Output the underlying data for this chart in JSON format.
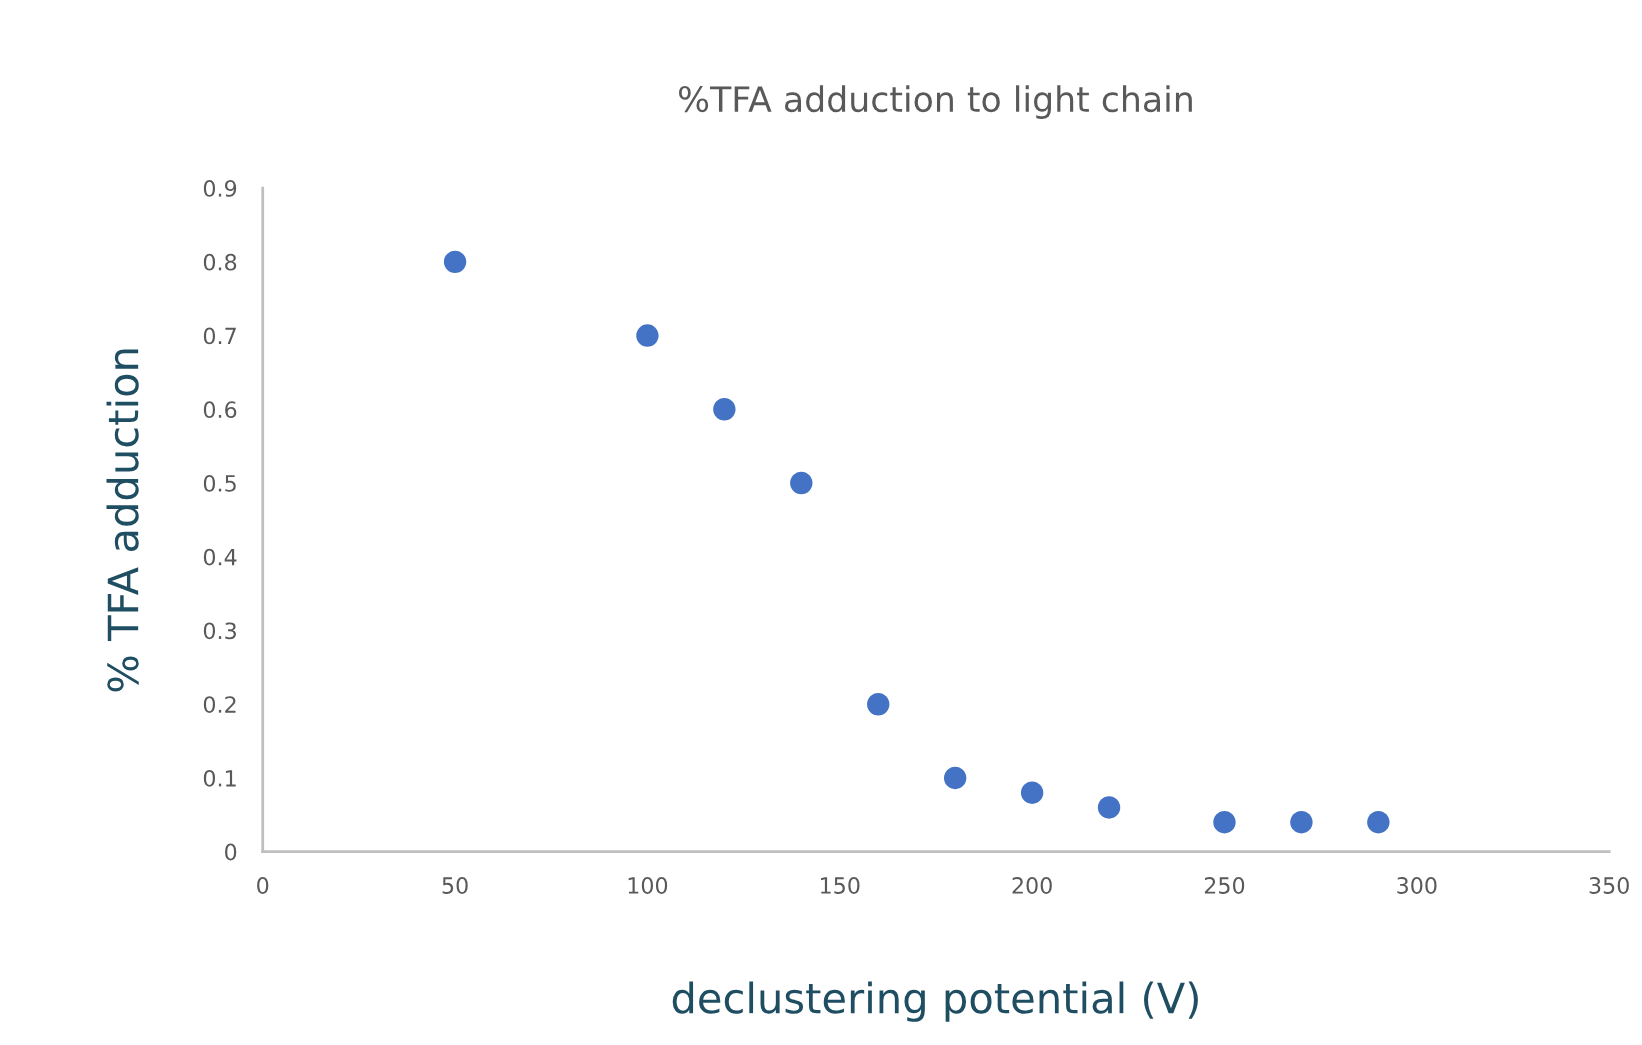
{
  "chart_data": {
    "type": "scatter",
    "title": "%TFA adduction to light chain",
    "xlabel": "declustering potential (V)",
    "ylabel": "% TFA adduction",
    "x": [
      50,
      100,
      120,
      140,
      160,
      180,
      200,
      220,
      250,
      270,
      290
    ],
    "series": [
      {
        "color": "#4472c4",
        "values": [
          0.8,
          0.7,
          0.6,
          0.5,
          0.2,
          0.1,
          0.08,
          0.06,
          0.04,
          0.04,
          0.04
        ]
      }
    ],
    "xlim": [
      0,
      350
    ],
    "xticks": [
      0,
      50,
      100,
      150,
      200,
      250,
      300,
      350
    ],
    "ylim": [
      0,
      0.9
    ],
    "yticks": [
      0,
      0.1,
      0.2,
      0.3,
      0.4,
      0.5,
      0.6,
      0.7,
      0.8,
      0.9
    ],
    "grid": false,
    "marker": "circle"
  }
}
